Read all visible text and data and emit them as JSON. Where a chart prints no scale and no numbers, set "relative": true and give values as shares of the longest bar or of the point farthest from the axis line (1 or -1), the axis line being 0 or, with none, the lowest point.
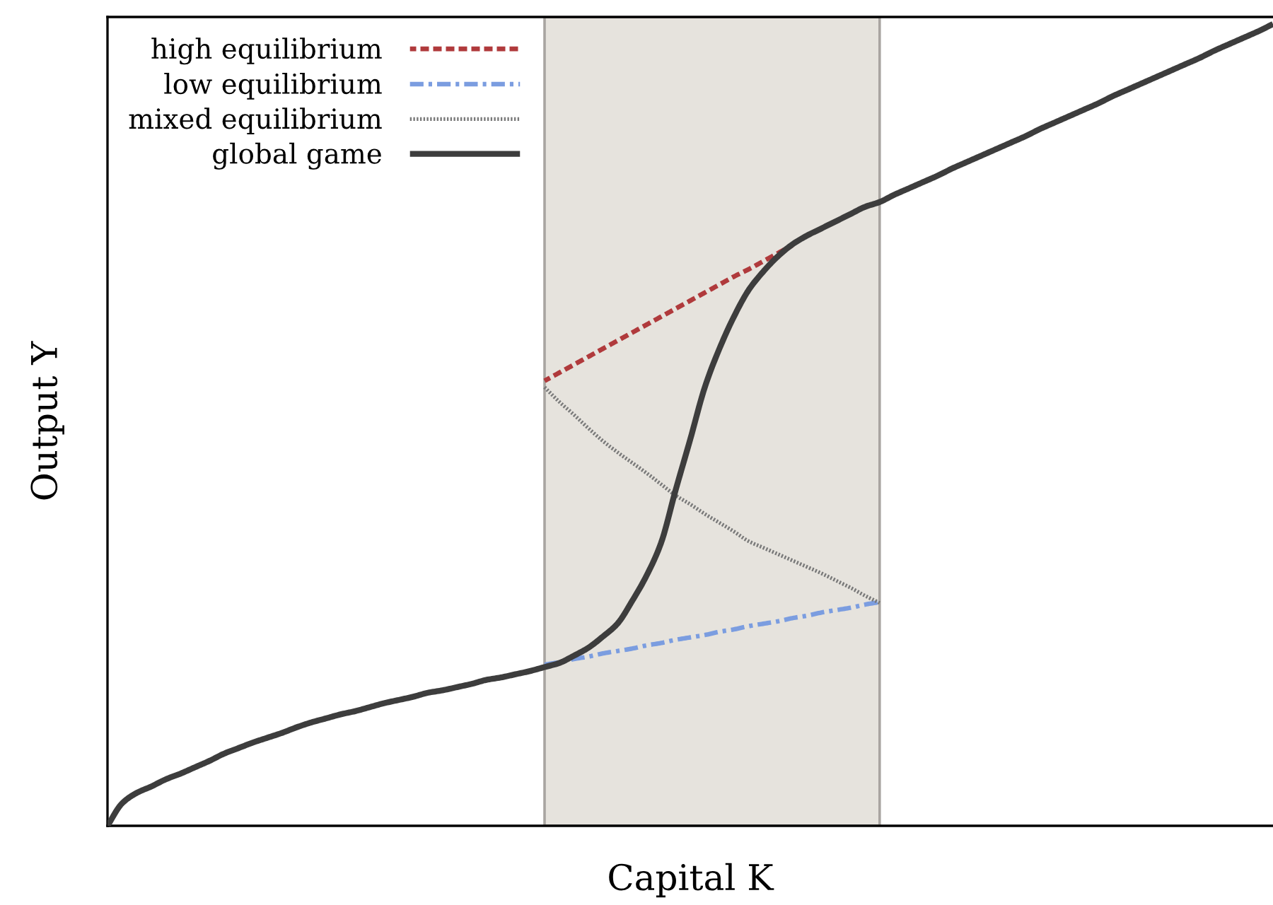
{
  "chart_data": {
    "type": "line",
    "xlabel": "Capital K",
    "ylabel": "Output Y",
    "relative": true,
    "legend": "top left",
    "categories": [
      null,
      null,
      null,
      null,
      null,
      null,
      null,
      null,
      null,
      null,
      null,
      null,
      null,
      null,
      null,
      null,
      null,
      null,
      null,
      null,
      null,
      null,
      null,
      null,
      null,
      null,
      null,
      null,
      null,
      null,
      null,
      null,
      null,
      null,
      null,
      null,
      null,
      null,
      null,
      null,
      null,
      null,
      null,
      null,
      null,
      null,
      null,
      null,
      null,
      null,
      null,
      null,
      null,
      null,
      null,
      null,
      null,
      null,
      null,
      null,
      null,
      null,
      null,
      null,
      null,
      null,
      null,
      null,
      null,
      null,
      null,
      null,
      null,
      null,
      null,
      null,
      null,
      null,
      null,
      null,
      null
    ],
    "series": [
      {
        "name": "high equilibrium",
        "color": "#b03a3c",
        "line_style": "dashed",
        "values": [
          null,
          null,
          null,
          null,
          null,
          null,
          null,
          null,
          null,
          null,
          null,
          null,
          null,
          null,
          null,
          null,
          null,
          null,
          null,
          null,
          null,
          null,
          null,
          null,
          null,
          null,
          null,
          null,
          null,
          null,
          0.555,
          0.565,
          0.575,
          0.585,
          0.595,
          0.605,
          0.615,
          0.625,
          0.635,
          0.645,
          0.655,
          0.665,
          0.675,
          0.685,
          0.694,
          0.704,
          0.714,
          0.724,
          null,
          null,
          null,
          null,
          null,
          null,
          null,
          null,
          null,
          null,
          null,
          null,
          null,
          null,
          null,
          null,
          null,
          null,
          null,
          null,
          null,
          null,
          null,
          null,
          null,
          null,
          null,
          null,
          null,
          null,
          null,
          null,
          null
        ]
      },
      {
        "name": "low equilibrium",
        "color": "#7b9de0",
        "line_style": "dashdot",
        "values": [
          null,
          null,
          null,
          null,
          null,
          null,
          null,
          null,
          null,
          null,
          null,
          null,
          null,
          null,
          null,
          null,
          null,
          null,
          null,
          null,
          null,
          null,
          null,
          null,
          null,
          null,
          null,
          null,
          null,
          null,
          0.201,
          0.204,
          0.208,
          0.211,
          0.215,
          0.218,
          0.221,
          0.225,
          0.228,
          0.232,
          0.235,
          0.238,
          0.242,
          0.245,
          0.249,
          0.252,
          0.255,
          0.259,
          0.262,
          0.266,
          0.269,
          0.272,
          0.276,
          0.279,
          null,
          null,
          null,
          null,
          null,
          null,
          null,
          null,
          null,
          null,
          null,
          null,
          null,
          null,
          null,
          null,
          null,
          null,
          null,
          null,
          null,
          null,
          null,
          null,
          null,
          null,
          null
        ]
      },
      {
        "name": "mixed equilibrium",
        "color": "#7a7a7a",
        "line_style": "dotted",
        "values": [
          null,
          null,
          null,
          null,
          null,
          null,
          null,
          null,
          null,
          null,
          null,
          null,
          null,
          null,
          null,
          null,
          null,
          null,
          null,
          null,
          null,
          null,
          null,
          null,
          null,
          null,
          null,
          null,
          null,
          null,
          0.547,
          0.529,
          0.513,
          0.496,
          0.48,
          0.466,
          0.453,
          0.44,
          0.426,
          0.412,
          0.401,
          0.389,
          0.378,
          0.367,
          0.355,
          0.347,
          0.339,
          0.331,
          0.323,
          0.315,
          0.306,
          0.297,
          0.287,
          0.278,
          null,
          null,
          null,
          null,
          null,
          null,
          null,
          null,
          null,
          null,
          null,
          null,
          null,
          null,
          null,
          null,
          null,
          null,
          null,
          null,
          null,
          null,
          null,
          null,
          null,
          null,
          null
        ]
      },
      {
        "name": "global game",
        "color": "#3d3d3d",
        "line_style": "solid",
        "values": [
          0,
          0.028,
          0.041,
          0.049,
          0.058,
          0.065,
          0.073,
          0.081,
          0.09,
          0.097,
          0.104,
          0.11,
          0.116,
          0.123,
          0.129,
          0.134,
          0.139,
          0.143,
          0.148,
          0.153,
          0.157,
          0.161,
          0.166,
          0.169,
          0.173,
          0.177,
          0.182,
          0.185,
          0.189,
          0.193,
          0.198,
          0.203,
          0.212,
          0.222,
          0.236,
          0.252,
          0.28,
          0.312,
          0.353,
          0.419,
          0.482,
          0.547,
          0.595,
          0.635,
          0.668,
          0.691,
          0.71,
          0.725,
          0.736,
          0.745,
          0.754,
          0.763,
          0.772,
          0.778,
          0.787,
          0.795,
          0.803,
          0.811,
          0.82,
          0.828,
          0.836,
          0.844,
          0.852,
          0.86,
          0.869,
          0.877,
          0.885,
          0.893,
          0.901,
          0.91,
          0.918,
          0.926,
          0.934,
          0.942,
          0.95,
          0.958,
          0.967,
          0.975,
          0.983,
          0.991,
          1
        ]
      }
    ]
  }
}
